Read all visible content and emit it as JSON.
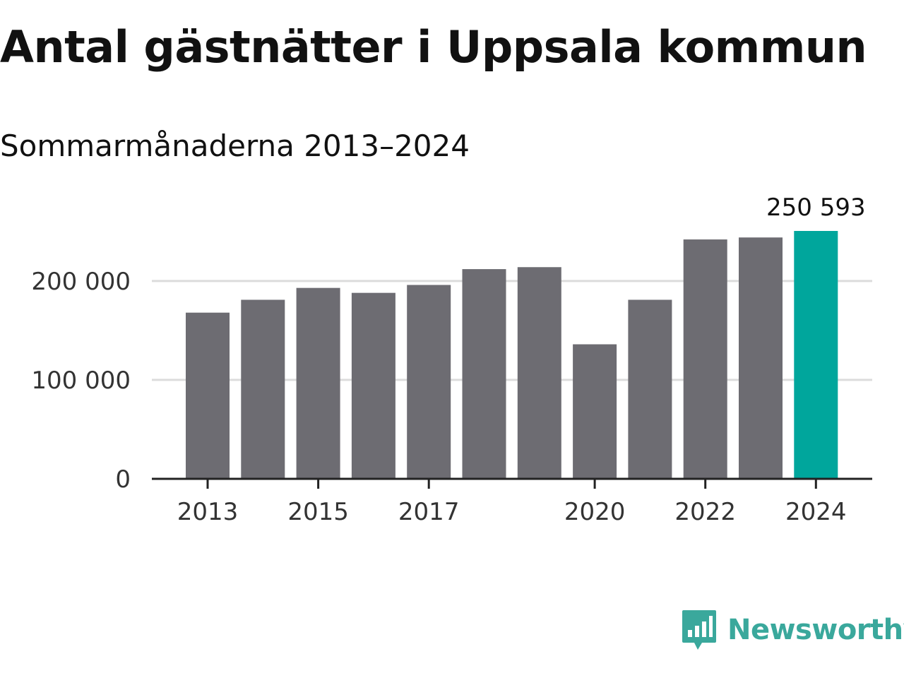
{
  "title": "Antal gästnätter i Uppsala kommun",
  "subtitle": "Sommarmånaderna 2013–2024",
  "brand": {
    "name": "Newsworthy",
    "color": "#3aa89c"
  },
  "colors": {
    "bar": "#6d6c72",
    "highlight": "#00a69c",
    "grid": "#dcdcdc",
    "axis": "#222222"
  },
  "chart_data": {
    "type": "bar",
    "categories": [
      "2013",
      "2014",
      "2015",
      "2016",
      "2017",
      "2018",
      "2019",
      "2020",
      "2021",
      "2022",
      "2023",
      "2024"
    ],
    "values": [
      168000,
      181000,
      193000,
      188000,
      196000,
      212000,
      214000,
      136000,
      181000,
      242000,
      244000,
      250593
    ],
    "highlight_index": 11,
    "data_labels": [
      {
        "index": 11,
        "text": "250 593"
      }
    ],
    "x_tick_labels": [
      "2013",
      "2015",
      "2017",
      "2020",
      "2022",
      "2024"
    ],
    "y_ticks": [
      {
        "value": 0,
        "label": "0"
      },
      {
        "value": 100000,
        "label": "100 000"
      },
      {
        "value": 200000,
        "label": "200 000"
      }
    ],
    "ylim": [
      0,
      250593
    ],
    "grid": true,
    "legend": "none"
  }
}
